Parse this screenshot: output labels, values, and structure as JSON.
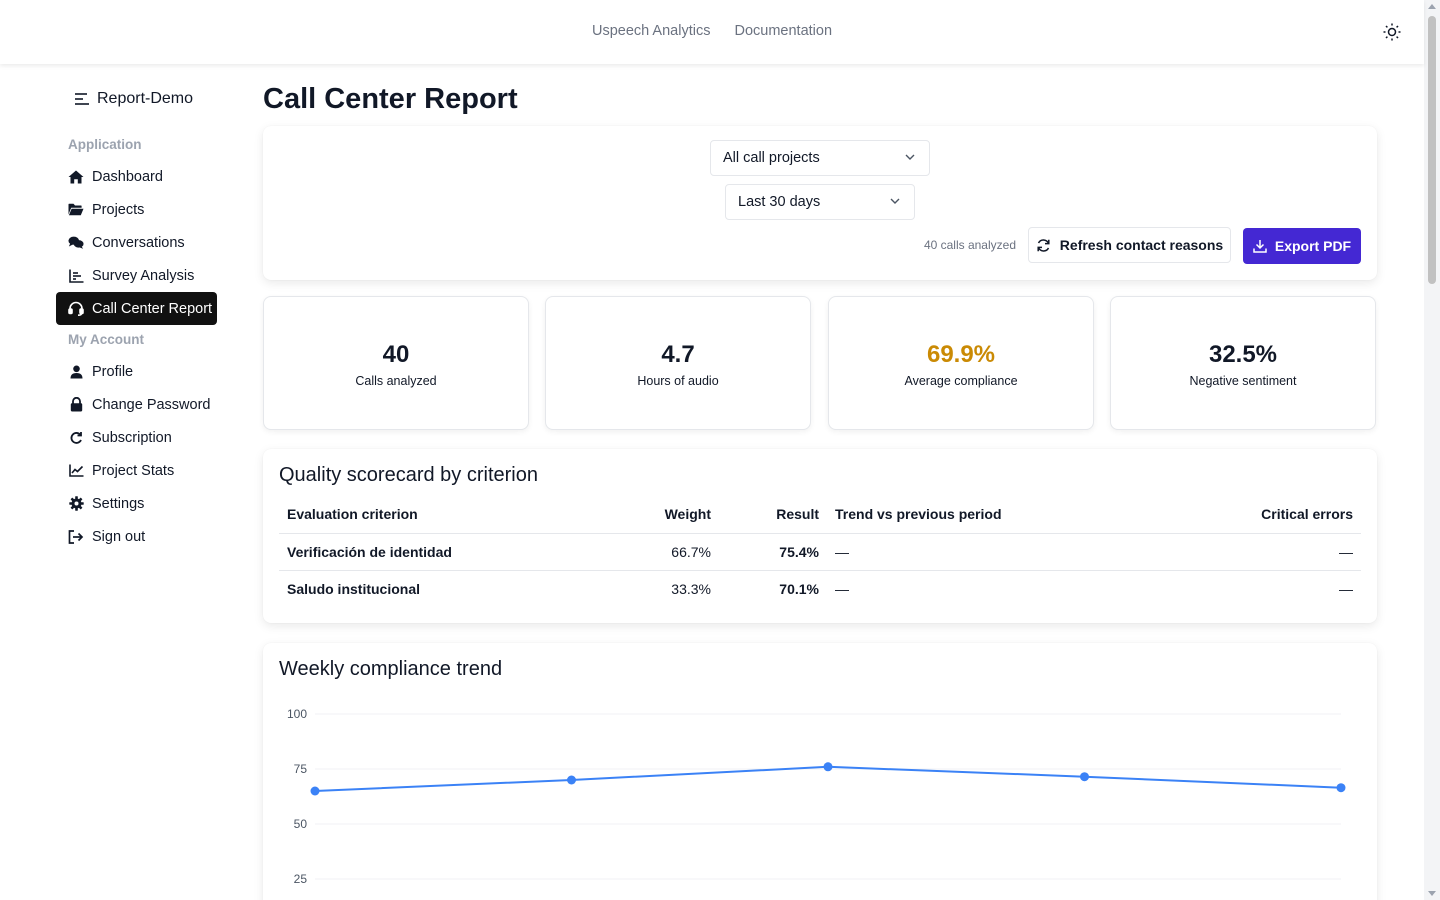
{
  "topnav": {
    "link1": "Uspeech Analytics",
    "link2": "Documentation"
  },
  "sidebar": {
    "brand": "Report-Demo",
    "sections": {
      "application": "Application",
      "account": "My Account"
    },
    "items": [
      {
        "label": "Dashboard",
        "icon": "home-icon"
      },
      {
        "label": "Projects",
        "icon": "folder-icon"
      },
      {
        "label": "Conversations",
        "icon": "comments-icon"
      },
      {
        "label": "Survey Analysis",
        "icon": "bar-chart-icon"
      },
      {
        "label": "Call Center Report",
        "icon": "headset-icon",
        "active": true
      },
      {
        "label": "Profile",
        "icon": "user-icon"
      },
      {
        "label": "Change Password",
        "icon": "lock-icon"
      },
      {
        "label": "Subscription",
        "icon": "refresh-icon"
      },
      {
        "label": "Project Stats",
        "icon": "line-chart-icon"
      },
      {
        "label": "Settings",
        "icon": "gear-icon"
      },
      {
        "label": "Sign out",
        "icon": "sign-out-icon"
      }
    ]
  },
  "page": {
    "title": "Call Center Report"
  },
  "filters": {
    "project": "All call projects",
    "range": "Last 30 days",
    "calls_note": "40 calls analyzed",
    "refresh_label": "Refresh contact reasons",
    "export_label": "Export PDF"
  },
  "stats": [
    {
      "value": "40",
      "label": "Calls analyzed"
    },
    {
      "value": "4.7",
      "label": "Hours of audio"
    },
    {
      "value": "69.9%",
      "label": "Average compliance",
      "color": "#ca8a04"
    },
    {
      "value": "32.5%",
      "label": "Negative sentiment"
    }
  ],
  "scorecard": {
    "title": "Quality scorecard by criterion",
    "headers": [
      "Evaluation criterion",
      "Weight",
      "Result",
      "Trend vs previous period",
      "Critical errors"
    ],
    "rows": [
      {
        "criterion": "Verificación de identidad",
        "weight": "66.7%",
        "result": "75.4%",
        "trend": "—",
        "critical": "—"
      },
      {
        "criterion": "Saludo institucional",
        "weight": "33.3%",
        "result": "70.1%",
        "trend": "—",
        "critical": "—"
      }
    ]
  },
  "trend": {
    "title": "Weekly compliance trend"
  },
  "chart_data": {
    "type": "line",
    "title": "Weekly compliance trend",
    "xlabel": "",
    "ylabel": "",
    "ylim": [
      0,
      100
    ],
    "yticks": [
      25,
      50,
      75,
      100
    ],
    "grid": true,
    "series": [
      {
        "values": [
          65,
          70,
          76,
          71.5,
          66.5
        ],
        "color": "#3b82f6"
      }
    ]
  },
  "colors": {
    "accent": "#4428d3",
    "warning": "#ca8a04",
    "line": "#3b82f6"
  }
}
